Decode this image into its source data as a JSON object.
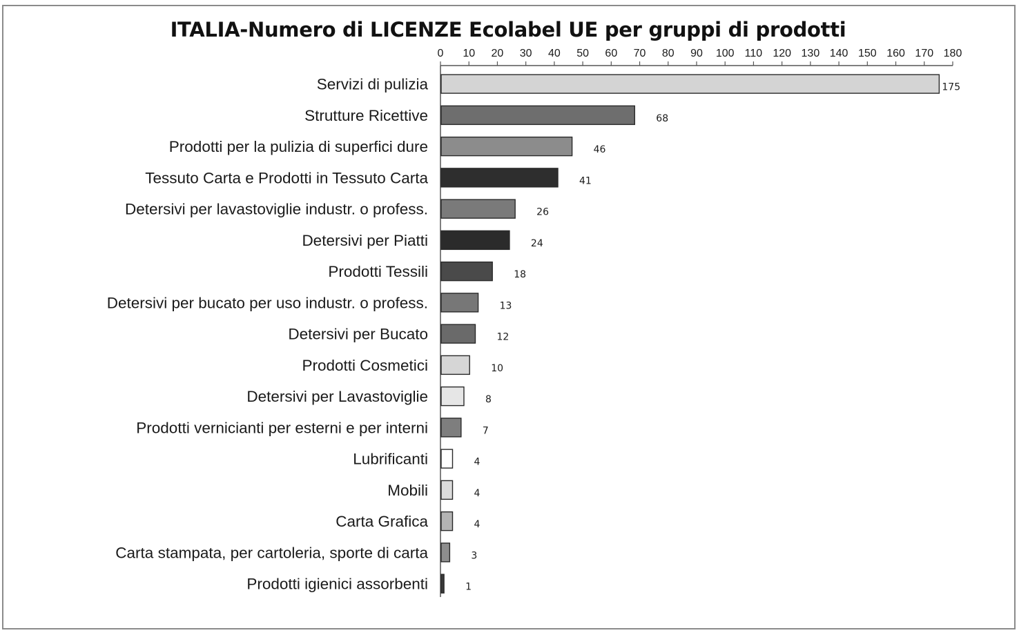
{
  "chart_data": {
    "type": "bar",
    "orientation": "horizontal",
    "title": "ITALIA-Numero di LICENZE  Ecolabel UE per gruppi di prodotti",
    "xlabel": "",
    "ylabel": "",
    "xlim": [
      0,
      180
    ],
    "xticks": [
      0,
      10,
      20,
      30,
      40,
      50,
      60,
      70,
      80,
      90,
      100,
      110,
      120,
      130,
      140,
      150,
      160,
      170,
      180
    ],
    "axis_position": "top",
    "grid": false,
    "categories": [
      "Servizi di pulizia",
      "Strutture Ricettive",
      "Prodotti per la pulizia di superfici dure",
      "Tessuto Carta e Prodotti in Tessuto Carta",
      "Detersivi per lavastoviglie industr. o profess.",
      "Detersivi per Piatti",
      "Prodotti Tessili",
      "Detersivi per bucato per uso industr. o profess.",
      "Detersivi per Bucato",
      "Prodotti Cosmetici",
      "Detersivi per Lavastoviglie",
      "Prodotti vernicianti per esterni e per interni",
      "Lubrificanti",
      "Mobili",
      "Carta Grafica",
      "Carta stampata, per cartoleria, sporte di carta",
      "Prodotti igienici assorbenti"
    ],
    "values": [
      175,
      68,
      46,
      41,
      26,
      24,
      18,
      13,
      12,
      10,
      8,
      7,
      4,
      4,
      4,
      3,
      1
    ],
    "colors": [
      "#d4d4d4",
      "#6e6e6e",
      "#8c8c8c",
      "#2e2e2e",
      "#7a7a7a",
      "#2b2b2b",
      "#4a4a4a",
      "#777777",
      "#6a6a6a",
      "#d6d6d6",
      "#e6e6e6",
      "#7e7e7e",
      "#ffffff",
      "#dcdcdc",
      "#b4b4b4",
      "#8e8e8e",
      "#3a3a3a"
    ]
  }
}
